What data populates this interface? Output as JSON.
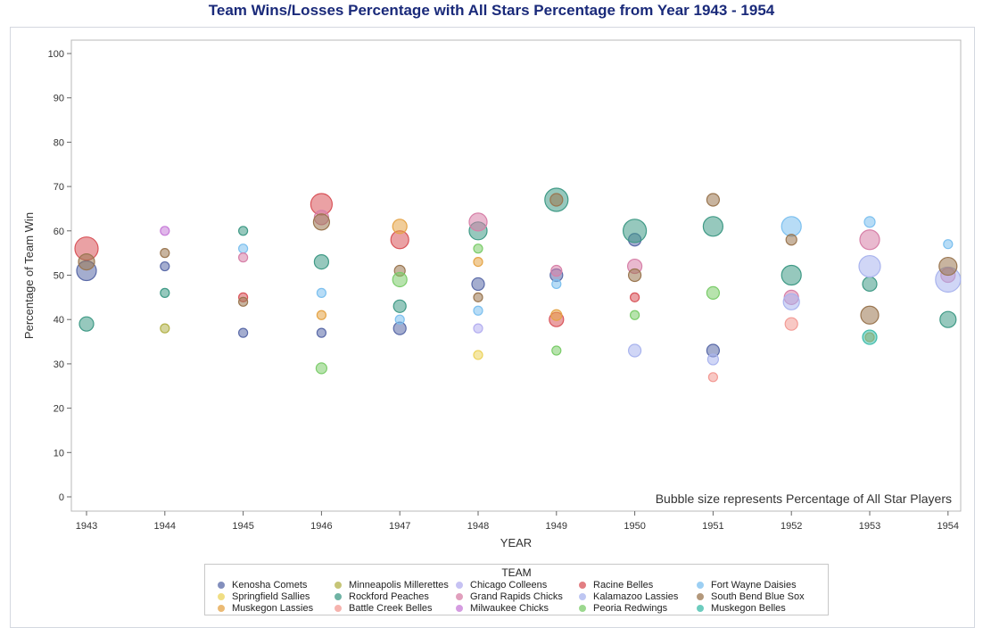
{
  "chart_data": {
    "type": "scatter",
    "title": "Team Wins/Losses Percentage with All Stars Percentage from Year 1943 - 1954",
    "xlabel": "YEAR",
    "ylabel": "Percentage of Team Win",
    "x_ticks": [
      "1943",
      "1944",
      "1945",
      "1946",
      "1947",
      "1948",
      "1949",
      "1950",
      "1951",
      "1952",
      "1953",
      "1954"
    ],
    "y_ticks": [
      "0",
      "10",
      "20",
      "30",
      "40",
      "50",
      "60",
      "70",
      "80",
      "90",
      "100"
    ],
    "ylim": [
      0,
      100
    ],
    "note": "Bubble size represents Percentage of All Star Players",
    "legend_title": "TEAM",
    "legend_position": "bottom",
    "series": [
      {
        "name": "Kenosha Comets",
        "color": "#5a6aa8",
        "points": [
          {
            "x": "1943",
            "y": 51,
            "size": 11
          },
          {
            "x": "1944",
            "y": 52,
            "size": 5
          },
          {
            "x": "1945",
            "y": 37,
            "size": 5
          },
          {
            "x": "1946",
            "y": 37,
            "size": 5
          },
          {
            "x": "1947",
            "y": 38,
            "size": 7
          },
          {
            "x": "1948",
            "y": 48,
            "size": 7
          },
          {
            "x": "1949",
            "y": 50,
            "size": 7
          },
          {
            "x": "1950",
            "y": 58,
            "size": 7
          },
          {
            "x": "1951",
            "y": 33,
            "size": 7
          }
        ]
      },
      {
        "name": "Minneapolis Millerettes",
        "color": "#b3b24a",
        "points": [
          {
            "x": "1944",
            "y": 38,
            "size": 5
          }
        ]
      },
      {
        "name": "Chicago Colleens",
        "color": "#b4aef0",
        "points": [
          {
            "x": "1948",
            "y": 38,
            "size": 5
          }
        ]
      },
      {
        "name": "Racine Belles",
        "color": "#d9545a",
        "points": [
          {
            "x": "1943",
            "y": 56,
            "size": 13
          },
          {
            "x": "1945",
            "y": 45,
            "size": 5
          },
          {
            "x": "1946",
            "y": 66,
            "size": 12
          },
          {
            "x": "1947",
            "y": 58,
            "size": 10
          },
          {
            "x": "1949",
            "y": 40,
            "size": 8
          },
          {
            "x": "1950",
            "y": 45,
            "size": 5
          }
        ]
      },
      {
        "name": "Fort Wayne Daisies",
        "color": "#7cc0ef",
        "points": [
          {
            "x": "1945",
            "y": 56,
            "size": 5
          },
          {
            "x": "1946",
            "y": 46,
            "size": 5
          },
          {
            "x": "1947",
            "y": 40,
            "size": 5
          },
          {
            "x": "1948",
            "y": 42,
            "size": 5
          },
          {
            "x": "1949",
            "y": 48,
            "size": 5
          },
          {
            "x": "1952",
            "y": 61,
            "size": 11
          },
          {
            "x": "1953",
            "y": 62,
            "size": 6
          },
          {
            "x": "1954",
            "y": 57,
            "size": 5
          }
        ]
      },
      {
        "name": "Springfield Sallies",
        "color": "#ecd35c",
        "points": [
          {
            "x": "1948",
            "y": 32,
            "size": 5
          }
        ]
      },
      {
        "name": "Rockford Peaches",
        "color": "#3f9a86",
        "points": [
          {
            "x": "1943",
            "y": 39,
            "size": 8
          },
          {
            "x": "1944",
            "y": 46,
            "size": 5
          },
          {
            "x": "1945",
            "y": 60,
            "size": 5
          },
          {
            "x": "1946",
            "y": 53,
            "size": 8
          },
          {
            "x": "1947",
            "y": 43,
            "size": 7
          },
          {
            "x": "1948",
            "y": 60,
            "size": 10
          },
          {
            "x": "1949",
            "y": 67,
            "size": 13
          },
          {
            "x": "1950",
            "y": 60,
            "size": 13
          },
          {
            "x": "1951",
            "y": 61,
            "size": 11
          },
          {
            "x": "1952",
            "y": 50,
            "size": 11
          },
          {
            "x": "1953",
            "y": 48,
            "size": 8
          },
          {
            "x": "1954",
            "y": 40,
            "size": 9
          }
        ]
      },
      {
        "name": "Grand Rapids Chicks",
        "color": "#d780a8",
        "points": [
          {
            "x": "1945",
            "y": 54,
            "size": 5
          },
          {
            "x": "1946",
            "y": 63,
            "size": 8
          },
          {
            "x": "1948",
            "y": 62,
            "size": 10
          },
          {
            "x": "1949",
            "y": 51,
            "size": 6
          },
          {
            "x": "1950",
            "y": 52,
            "size": 8
          },
          {
            "x": "1952",
            "y": 45,
            "size": 8
          },
          {
            "x": "1953",
            "y": 58,
            "size": 11
          },
          {
            "x": "1954",
            "y": 50,
            "size": 8
          }
        ]
      },
      {
        "name": "Kalamazoo Lassies",
        "color": "#a9b4ee",
        "points": [
          {
            "x": "1950",
            "y": 33,
            "size": 7
          },
          {
            "x": "1951",
            "y": 31,
            "size": 6
          },
          {
            "x": "1952",
            "y": 44,
            "size": 9
          },
          {
            "x": "1953",
            "y": 52,
            "size": 12
          },
          {
            "x": "1954",
            "y": 49,
            "size": 14
          }
        ]
      },
      {
        "name": "South Bend Blue Sox",
        "color": "#9a7650",
        "points": [
          {
            "x": "1943",
            "y": 53,
            "size": 9
          },
          {
            "x": "1944",
            "y": 55,
            "size": 5
          },
          {
            "x": "1945",
            "y": 44,
            "size": 5
          },
          {
            "x": "1946",
            "y": 62,
            "size": 9
          },
          {
            "x": "1947",
            "y": 51,
            "size": 6
          },
          {
            "x": "1948",
            "y": 45,
            "size": 5
          },
          {
            "x": "1949",
            "y": 67,
            "size": 7
          },
          {
            "x": "1950",
            "y": 50,
            "size": 7
          },
          {
            "x": "1951",
            "y": 67,
            "size": 7
          },
          {
            "x": "1952",
            "y": 58,
            "size": 6
          },
          {
            "x": "1953",
            "y": 41,
            "size": 10
          },
          {
            "x": "1954",
            "y": 52,
            "size": 10
          }
        ]
      },
      {
        "name": "Muskegon Lassies",
        "color": "#e5a446",
        "points": [
          {
            "x": "1946",
            "y": 41,
            "size": 5
          },
          {
            "x": "1947",
            "y": 61,
            "size": 8
          },
          {
            "x": "1948",
            "y": 53,
            "size": 5
          },
          {
            "x": "1949",
            "y": 41,
            "size": 6
          },
          {
            "x": "1953",
            "y": 36,
            "size": 5
          }
        ]
      },
      {
        "name": "Battle Creek Belles",
        "color": "#f39a94",
        "points": [
          {
            "x": "1951",
            "y": 27,
            "size": 5
          },
          {
            "x": "1952",
            "y": 39,
            "size": 7
          }
        ]
      },
      {
        "name": "Milwaukee Chicks",
        "color": "#c77bd8",
        "points": [
          {
            "x": "1944",
            "y": 60,
            "size": 5
          }
        ]
      },
      {
        "name": "Peoria Redwings",
        "color": "#7bcc6a",
        "points": [
          {
            "x": "1946",
            "y": 29,
            "size": 6
          },
          {
            "x": "1947",
            "y": 49,
            "size": 8
          },
          {
            "x": "1948",
            "y": 56,
            "size": 5
          },
          {
            "x": "1949",
            "y": 33,
            "size": 5
          },
          {
            "x": "1950",
            "y": 41,
            "size": 5
          },
          {
            "x": "1951",
            "y": 46,
            "size": 7
          }
        ]
      },
      {
        "name": "Muskegon Belles",
        "color": "#3dbca9",
        "points": [
          {
            "x": "1953",
            "y": 36,
            "size": 8
          }
        ]
      }
    ]
  }
}
